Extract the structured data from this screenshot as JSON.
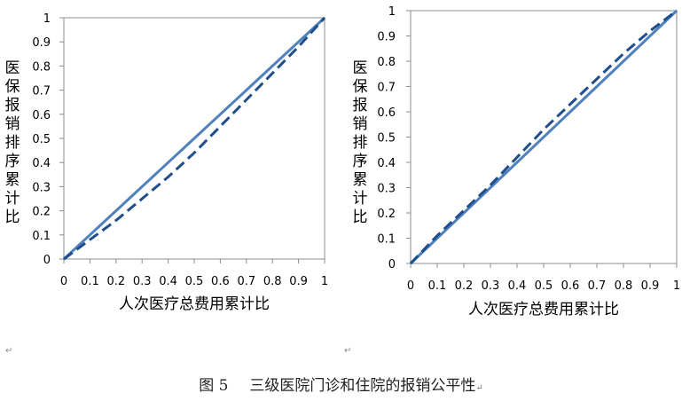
{
  "chart_data": [
    {
      "type": "line",
      "xlabel": "人次医疗总费用累计比",
      "ylabel": "医保报销排序累计比",
      "xlim": [
        0,
        1
      ],
      "ylim": [
        0,
        1
      ],
      "ticks": [
        "0",
        "0.1",
        "0.2",
        "0.3",
        "0.4",
        "0.5",
        "0.6",
        "0.7",
        "0.8",
        "0.9",
        "1"
      ],
      "legend": "none",
      "grid": false,
      "series": [
        {
          "style": "solid",
          "color": "#4f81bd",
          "x": [
            0,
            0.1,
            0.2,
            0.3,
            0.4,
            0.5,
            0.6,
            0.7,
            0.8,
            0.9,
            1
          ],
          "y": [
            0,
            0.1,
            0.2,
            0.3,
            0.4,
            0.5,
            0.6,
            0.7,
            0.8,
            0.9,
            1
          ]
        },
        {
          "style": "dashed",
          "color": "#1f4e8c",
          "x": [
            0,
            0.1,
            0.2,
            0.3,
            0.4,
            0.5,
            0.6,
            0.7,
            0.8,
            0.9,
            1
          ],
          "y": [
            0,
            0.08,
            0.16,
            0.25,
            0.34,
            0.44,
            0.55,
            0.66,
            0.77,
            0.88,
            1
          ]
        }
      ]
    },
    {
      "type": "line",
      "xlabel": "人次医疗总费用累计比",
      "ylabel": "医保报销排序累计比",
      "xlim": [
        0,
        1
      ],
      "ylim": [
        0,
        1
      ],
      "ticks": [
        "0",
        "0.1",
        "0.2",
        "0.3",
        "0.4",
        "0.5",
        "0.6",
        "0.7",
        "0.8",
        "0.9",
        "1"
      ],
      "legend": "none",
      "grid": false,
      "series": [
        {
          "style": "solid",
          "color": "#4f81bd",
          "x": [
            0,
            0.1,
            0.2,
            0.3,
            0.4,
            0.5,
            0.6,
            0.7,
            0.8,
            0.9,
            1
          ],
          "y": [
            0,
            0.1,
            0.2,
            0.3,
            0.4,
            0.5,
            0.6,
            0.7,
            0.8,
            0.9,
            1
          ]
        },
        {
          "style": "dashed",
          "color": "#1f4e8c",
          "x": [
            0,
            0.1,
            0.2,
            0.3,
            0.4,
            0.5,
            0.6,
            0.7,
            0.8,
            0.9,
            1
          ],
          "y": [
            0,
            0.11,
            0.21,
            0.31,
            0.42,
            0.53,
            0.63,
            0.73,
            0.83,
            0.92,
            1
          ]
        }
      ]
    }
  ],
  "caption": {
    "figure": "图 5",
    "text": "三级医院门诊和住院的报销公平性"
  },
  "return_mark": "↵"
}
